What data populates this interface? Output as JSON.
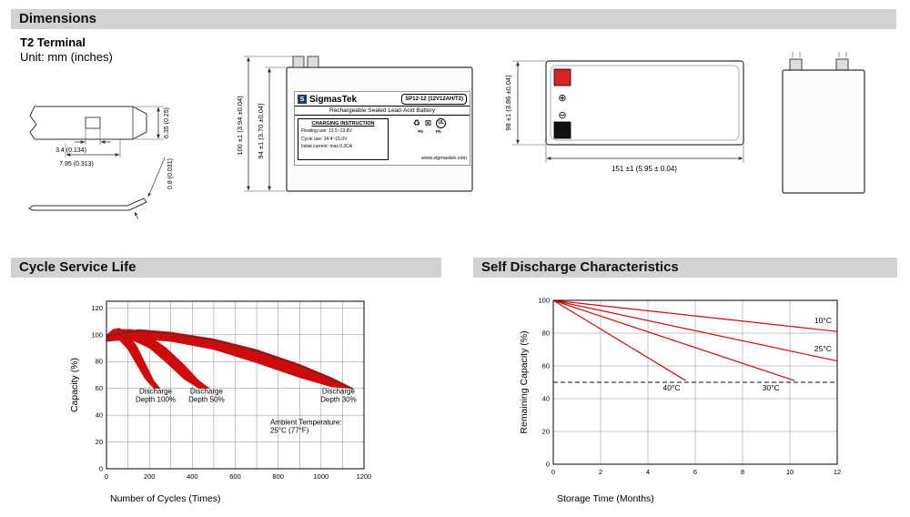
{
  "colors": {
    "header_bg": "#d2d2d2",
    "chart_red": "#cc0c0c",
    "terminal_red": "#d8232a",
    "terminal_black": "#111111"
  },
  "headers": {
    "dimensions": "Dimensions",
    "cycle": "Cycle Service Life",
    "self_discharge": "Self Discharge Characteristics"
  },
  "dimensions_section": {
    "subtitle": "T2 Terminal",
    "unit": "Unit: mm (inches)",
    "terminal_detail": {
      "dim_height": "6.35 (0.25)",
      "dim_hole": "3.4 (0.134)",
      "dim_tab": "7.95 (0.313)",
      "dim_thickness": "0.8 (0.031)"
    },
    "front_view": {
      "dim_overall_height": "100 ±1 (3.94 ±0.04)",
      "dim_case_height": "94 ±1 (3.70 ±0.04)",
      "label": {
        "brand": "SigmasTek",
        "model": "SP12-12 (12V12AH/T2)",
        "subtitle": "Rechargeable Sealed Lead-Acid Battery",
        "charging_title": "CHARGING INSTRUCTION",
        "charging_lines": [
          "Floating use: 13.5~13.8V",
          "Cycle use: 14.4~15.0V",
          "Initial current: max 0.3CA"
        ],
        "pb": "Pb",
        "ul": "UL",
        "website": "www.sigmastek.com"
      }
    },
    "top_view": {
      "dim_depth": "98 ±1 (3.86 ±0.04)",
      "dim_width": "151 ±1 (5.95 ± 0.04)",
      "plus_symbol": "⊕",
      "minus_symbol": "⊖"
    }
  },
  "chart_data": [
    {
      "type": "area",
      "title": "Cycle Service Life",
      "xlabel": "Number of Cycles (Times)",
      "ylabel": "Capacity (%)",
      "xlim": [
        0,
        1200
      ],
      "ylim": [
        0,
        125
      ],
      "xticks": [
        0,
        200,
        400,
        600,
        800,
        1000,
        1200
      ],
      "yticks": [
        0,
        20,
        40,
        60,
        80,
        100,
        120
      ],
      "x_minor_step": 100,
      "grid": true,
      "legend_position": "none",
      "bands": [
        {
          "name": "Discharge Depth 100%",
          "upper": [
            [
              0,
              100
            ],
            [
              30,
              104
            ],
            [
              60,
              105
            ],
            [
              100,
              101
            ],
            [
              140,
              92
            ],
            [
              180,
              79
            ],
            [
              220,
              66
            ],
            [
              250,
              60
            ]
          ],
          "lower": [
            [
              0,
              95
            ],
            [
              30,
              97
            ],
            [
              60,
              96
            ],
            [
              100,
              89
            ],
            [
              140,
              78
            ],
            [
              180,
              67
            ],
            [
              220,
              60
            ],
            [
              250,
              60
            ]
          ]
        },
        {
          "name": "Discharge Depth 50%",
          "upper": [
            [
              0,
              100
            ],
            [
              60,
              104
            ],
            [
              120,
              104
            ],
            [
              200,
              99
            ],
            [
              280,
              90
            ],
            [
              360,
              78
            ],
            [
              430,
              66
            ],
            [
              480,
              60
            ]
          ],
          "lower": [
            [
              0,
              95
            ],
            [
              60,
              97
            ],
            [
              120,
              96
            ],
            [
              200,
              90
            ],
            [
              280,
              79
            ],
            [
              360,
              67
            ],
            [
              430,
              60
            ],
            [
              480,
              60
            ]
          ]
        },
        {
          "name": "Discharge Depth 30%",
          "upper": [
            [
              0,
              100
            ],
            [
              150,
              104
            ],
            [
              300,
              102
            ],
            [
              500,
              97
            ],
            [
              700,
              89
            ],
            [
              900,
              78
            ],
            [
              1050,
              68
            ],
            [
              1150,
              60
            ]
          ],
          "lower": [
            [
              0,
              95
            ],
            [
              150,
              97
            ],
            [
              300,
              95
            ],
            [
              500,
              89
            ],
            [
              700,
              79
            ],
            [
              900,
              68
            ],
            [
              1050,
              61
            ],
            [
              1150,
              60
            ]
          ]
        }
      ],
      "outline": [
        [
          0,
          99
        ],
        [
          150,
          103
        ],
        [
          300,
          101
        ],
        [
          500,
          96
        ],
        [
          700,
          88
        ],
        [
          900,
          77
        ],
        [
          1050,
          67
        ],
        [
          1150,
          59
        ]
      ],
      "annotations": [
        {
          "text": "Discharge\nDepth 100%",
          "x": 229,
          "y": 56,
          "align": "middle"
        },
        {
          "text": "Discharge\nDepth 50%",
          "x": 466,
          "y": 56,
          "align": "middle"
        },
        {
          "text": "Discharge\nDepth 30%",
          "x": 1081,
          "y": 56,
          "align": "middle"
        },
        {
          "text": "Ambient Temperature:\n25°C (77°F)",
          "x": 763,
          "y": 33,
          "align": "start"
        }
      ]
    },
    {
      "type": "line",
      "title": "Self Discharge Characteristics",
      "xlabel": "Storage Time (Months)",
      "ylabel": "Remaining Capacity (%)",
      "xlim": [
        0,
        12
      ],
      "ylim": [
        0,
        100
      ],
      "xticks": [
        0,
        2,
        4,
        6,
        8,
        10,
        12
      ],
      "yticks": [
        0,
        20,
        40,
        60,
        80,
        100
      ],
      "grid": true,
      "legend_position": "inline-labels",
      "dashed_line_y": 50,
      "series": [
        {
          "name": "10°C",
          "points": [
            [
              0,
              100
            ],
            [
              12,
              81
            ]
          ],
          "label_x": 11.4,
          "label_y": 86
        },
        {
          "name": "25°C",
          "points": [
            [
              0,
              100
            ],
            [
              12,
              63
            ]
          ],
          "label_x": 11.4,
          "label_y": 69
        },
        {
          "name": "30°C",
          "points": [
            [
              0,
              100
            ],
            [
              10.2,
              51
            ]
          ],
          "label_x": 9.2,
          "label_y": 45
        },
        {
          "name": "40°C",
          "points": [
            [
              0,
              100
            ],
            [
              5.6,
              51
            ]
          ],
          "label_x": 5.0,
          "label_y": 45
        }
      ]
    }
  ]
}
